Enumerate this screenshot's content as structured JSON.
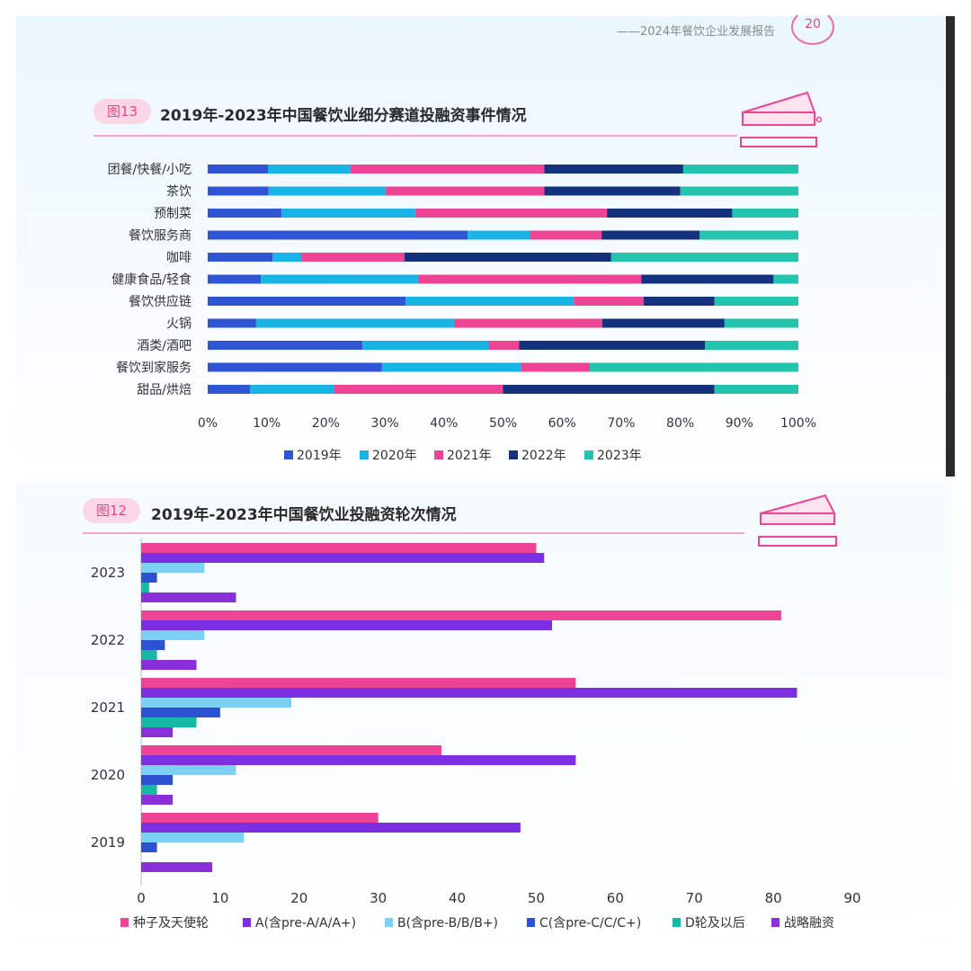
{
  "header": {
    "report_title": "——2024年餐饮企业发展报告",
    "page_number": "20"
  },
  "figure13": {
    "tag": "图13",
    "title": "2019年-2023年中国餐饮业细分赛道投融资事件情况"
  },
  "figure12": {
    "tag": "图12",
    "title": "2019年-2023年中国餐饮业投融资轮次情况"
  },
  "colors": {
    "y2019": "#2f55d4",
    "y2020": "#18b4e6",
    "y2021": "#ee4496",
    "y2022": "#13317c",
    "y2023": "#22c4ad",
    "seed": "#ee4496",
    "roundA": "#7b2ee2",
    "roundB": "#7cd0f4",
    "roundC": "#2c52d2",
    "roundD": "#16b9a6",
    "strategic": "#8a2fd9",
    "accent_pink": "#e04b86"
  },
  "chart_data": [
    {
      "type": "bar",
      "orientation": "horizontal",
      "stacked": "percent",
      "title": "2019年-2023年中国餐饮业细分赛道投融资事件情况",
      "categories": [
        "团餐/快餐/小吃",
        "茶饮",
        "预制菜",
        "餐饮服务商",
        "咖啡",
        "健康食品/轻食",
        "餐饮供应链",
        "火锅",
        "酒类/酒吧",
        "餐饮到家服务",
        "甜品/烘焙"
      ],
      "series": [
        {
          "name": "2019年",
          "values": [
            10.2,
            10.3,
            12.5,
            44.0,
            11.0,
            9.0,
            33.5,
            8.2,
            26.2,
            29.5,
            7.2
          ]
        },
        {
          "name": "2020年",
          "values": [
            13.9,
            19.8,
            22.7,
            10.5,
            4.9,
            26.6,
            28.5,
            33.5,
            21.3,
            23.5,
            14.2
          ]
        },
        {
          "name": "2021年",
          "values": [
            32.9,
            26.9,
            32.4,
            12.2,
            17.4,
            37.8,
            11.8,
            25.1,
            5.2,
            11.7,
            28.6
          ]
        },
        {
          "name": "2022年",
          "values": [
            23.5,
            23.0,
            21.2,
            16.6,
            35.0,
            22.4,
            12.0,
            20.7,
            31.5,
            0.0,
            35.8
          ]
        },
        {
          "name": "2023年",
          "values": [
            19.5,
            20.0,
            11.2,
            16.7,
            31.7,
            4.2,
            14.2,
            12.5,
            15.8,
            35.3,
            14.2
          ]
        }
      ],
      "x_ticks": [
        "0%",
        "10%",
        "20%",
        "30%",
        "40%",
        "50%",
        "60%",
        "70%",
        "80%",
        "90%",
        "100%"
      ],
      "xlim": [
        0,
        100
      ],
      "legend_position": "bottom"
    },
    {
      "type": "bar",
      "orientation": "horizontal",
      "title": "2019年-2023年中国餐饮业投融资轮次情况",
      "categories": [
        "2023",
        "2022",
        "2021",
        "2020",
        "2019"
      ],
      "series": [
        {
          "name": "种子及天使轮",
          "values": [
            50,
            81,
            55,
            38,
            30
          ]
        },
        {
          "name": "A(含pre-A/A/A+)",
          "values": [
            51,
            52,
            83,
            55,
            48
          ]
        },
        {
          "name": "B(含pre-B/B/B+)",
          "values": [
            8,
            8,
            19,
            12,
            13
          ]
        },
        {
          "name": "C(含pre-C/C/C+)",
          "values": [
            2,
            3,
            10,
            4,
            2
          ]
        },
        {
          "name": "D轮及以后",
          "values": [
            1,
            2,
            7,
            2,
            0
          ]
        },
        {
          "name": "战略融资",
          "values": [
            12,
            7,
            4,
            4,
            9
          ]
        }
      ],
      "x_ticks": [
        "0",
        "10",
        "20",
        "30",
        "40",
        "50",
        "60",
        "70",
        "80",
        "90"
      ],
      "xlim": [
        0,
        90
      ],
      "legend_position": "bottom"
    }
  ]
}
